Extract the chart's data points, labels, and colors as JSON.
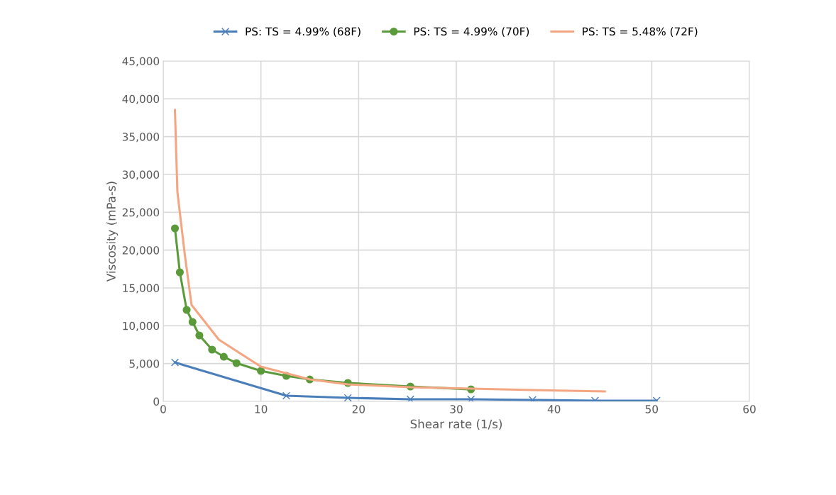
{
  "chart_data": {
    "type": "line",
    "xlabel": "Shear rate (1/s)",
    "ylabel": "Viscosity (mPa-s)",
    "xlim": [
      0,
      60
    ],
    "xticks": [
      0,
      10,
      20,
      30,
      40,
      50,
      60
    ],
    "ylim": [
      0,
      45000
    ],
    "yticks": [
      {
        "value": 0,
        "label": "0"
      },
      {
        "value": 5000,
        "label": "5,000"
      },
      {
        "value": 10000,
        "label": "10,000"
      },
      {
        "value": 15000,
        "label": "15,000"
      },
      {
        "value": 20000,
        "label": "20,000"
      },
      {
        "value": 25000,
        "label": "25,000"
      },
      {
        "value": 30000,
        "label": "30,000"
      },
      {
        "value": 35000,
        "label": "35,000"
      },
      {
        "value": 40000,
        "label": "40,000"
      },
      {
        "value": 45000,
        "label": "45,000"
      }
    ],
    "grid": true,
    "legend": "top",
    "line_style": "solid",
    "series": [
      {
        "name": "PS: TS = 4.99% (68F)",
        "color": "#4a7ebb",
        "marker": "cross",
        "x": [
          1.2,
          12.6,
          18.9,
          25.3,
          31.5,
          37.8,
          44.2,
          50.5
        ],
        "values": [
          5150,
          750,
          470,
          280,
          280,
          190,
          100,
          100
        ]
      },
      {
        "name": "PS: TS = 4.99% (70F)",
        "color": "#5b9a3a",
        "marker": "circle",
        "x": [
          1.2,
          1.7,
          2.4,
          3.0,
          3.7,
          5.0,
          6.2,
          7.5,
          10.0,
          12.6,
          15.0,
          18.9,
          25.3,
          31.5
        ],
        "values": [
          22870,
          17060,
          12090,
          10500,
          8720,
          6840,
          5900,
          5060,
          4030,
          3370,
          2900,
          2440,
          1970,
          1590
        ]
      },
      {
        "name": "PS: TS = 5.48% (72F)",
        "color": "#f4a582",
        "marker": "none",
        "x": [
          1.2,
          1.45,
          2.2,
          2.9,
          5.7,
          10.0,
          15.0,
          18.9,
          25.3,
          31.5,
          37.8,
          45.2
        ],
        "values": [
          38520,
          27700,
          19500,
          12750,
          8150,
          4590,
          2900,
          2250,
          1870,
          1690,
          1500,
          1310
        ]
      }
    ]
  }
}
